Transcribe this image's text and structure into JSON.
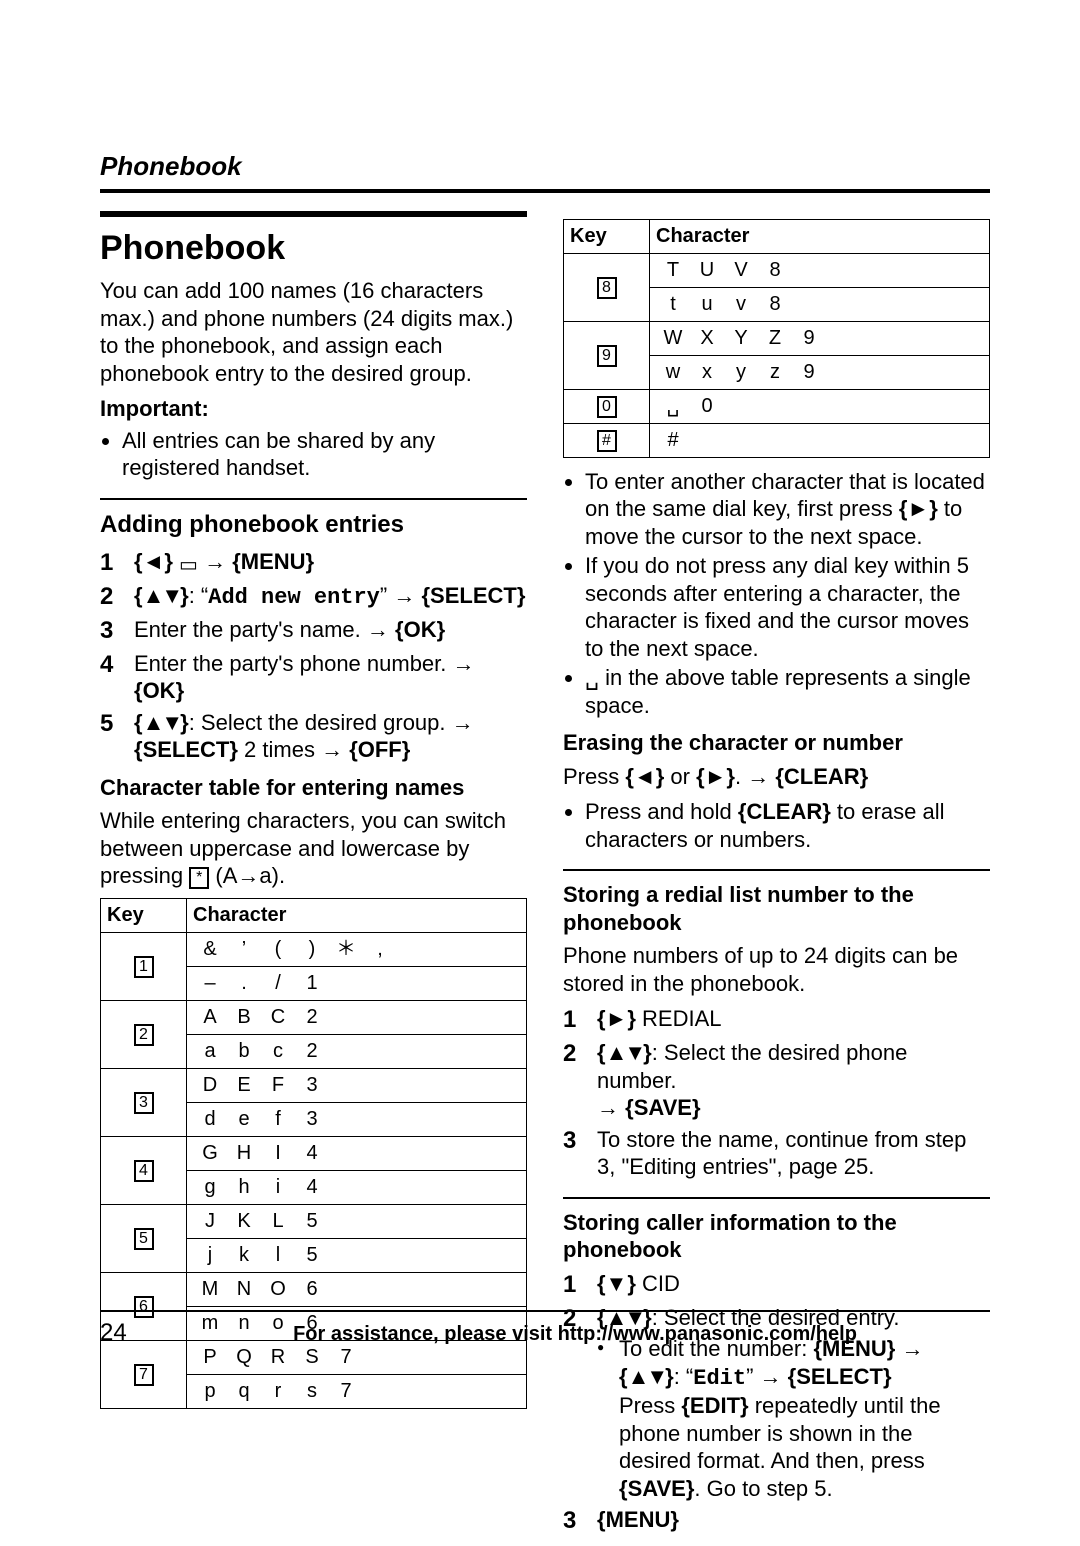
{
  "runningHead": "Phonebook",
  "pageNumber": "24",
  "footerAssist": "For assistance, please visit http://www.panasonic.com/help",
  "sectionTitle": "Phonebook",
  "intro": "You can add 100 names (16 characters max.) and phone numbers (24 digits max.) to the phonebook, and assign each phonebook entry to the desired group.",
  "importantLabel": "Important:",
  "importantBullet": "All entries can be shared by any registered handset.",
  "addingHead": "Adding phonebook entries",
  "steps_add": {
    "s1_menu": "MENU",
    "s2_label": "Add new entry",
    "s2_select": "SELECT",
    "s3_text": "Enter the party's name.",
    "s3_ok": "OK",
    "s4_text": "Enter the party's phone number.",
    "s4_ok": "OK",
    "s5_text": ": Select the desired group.",
    "s5_select": "SELECT",
    "s5_times": " 2 times ",
    "s5_off": "OFF"
  },
  "charTableHead": "Character table for entering names",
  "charTableIntro": "While entering characters, you can switch between uppercase and lowercase by pressing ",
  "charTableIntroTail": " (A→a).",
  "tableHeaders": {
    "key": "Key",
    "character": "Character"
  },
  "charRowsLeft": [
    {
      "key": "1",
      "rows": [
        [
          "&",
          "’",
          "(",
          ")",
          "＊",
          ","
        ],
        [
          "–",
          ".",
          "/",
          "1",
          "",
          ""
        ]
      ]
    },
    {
      "key": "2",
      "rows": [
        [
          "A",
          "B",
          "C",
          "2",
          "",
          ""
        ],
        [
          "a",
          "b",
          "c",
          "2",
          "",
          ""
        ]
      ]
    },
    {
      "key": "3",
      "rows": [
        [
          "D",
          "E",
          "F",
          "3",
          "",
          ""
        ],
        [
          "d",
          "e",
          "f",
          "3",
          "",
          ""
        ]
      ]
    },
    {
      "key": "4",
      "rows": [
        [
          "G",
          "H",
          "I",
          "4",
          "",
          ""
        ],
        [
          "g",
          "h",
          "i",
          "4",
          "",
          ""
        ]
      ]
    },
    {
      "key": "5",
      "rows": [
        [
          "J",
          "K",
          "L",
          "5",
          "",
          ""
        ],
        [
          "j",
          "k",
          "l",
          "5",
          "",
          ""
        ]
      ]
    },
    {
      "key": "6",
      "rows": [
        [
          "M",
          "N",
          "O",
          "6",
          "",
          ""
        ],
        [
          "m",
          "n",
          "o",
          "6",
          "",
          ""
        ]
      ]
    },
    {
      "key": "7",
      "rows": [
        [
          "P",
          "Q",
          "R",
          "S",
          "7",
          ""
        ],
        [
          "p",
          "q",
          "r",
          "s",
          "7",
          ""
        ]
      ]
    }
  ],
  "charRowsRight": [
    {
      "key": "8",
      "rows": [
        [
          "T",
          "U",
          "V",
          "8",
          "",
          ""
        ],
        [
          "t",
          "u",
          "v",
          "8",
          "",
          ""
        ]
      ]
    },
    {
      "key": "9",
      "rows": [
        [
          "W",
          "X",
          "Y",
          "Z",
          "9",
          ""
        ],
        [
          "w",
          "x",
          "y",
          "z",
          "9",
          ""
        ]
      ]
    },
    {
      "key": "0",
      "rows": [
        [
          "␣",
          "0",
          "",
          "",
          "",
          ""
        ]
      ]
    },
    {
      "key": "#",
      "rows": [
        [
          "#",
          "",
          "",
          "",
          "",
          ""
        ]
      ]
    }
  ],
  "notesRight": [
    "To enter another character that is located on the same dial key, first press {►} to move the cursor to the next space.",
    "If you do not press any dial key within 5 seconds after entering a character, the character is fixed and the cursor moves to the next space.",
    "␣ in the above table represents a single space."
  ],
  "note1_prefix": "To enter another character that is located on the same dial key, first press ",
  "note1_key": "►",
  "note1_suffix": " to move the cursor to the next space.",
  "eraseHead": "Erasing the character or number",
  "erase_press": "Press ",
  "erase_or": " or ",
  "erase_dot": ". ",
  "erase_clear": "CLEAR",
  "erase_bullet_a": "Press and hold ",
  "erase_bullet_b": " to erase all characters or numbers.",
  "redialHead": "Storing a redial list number to the phonebook",
  "redialIntro": "Phone numbers of up to 24 digits can be stored in the phonebook.",
  "redial_s1": " REDIAL",
  "redial_s2": ": Select the desired phone number. ",
  "redial_save": "SAVE",
  "redial_s3": "To store the name, continue from step 3, \"Editing entries\", page 25.",
  "callerHead": "Storing caller information to the phonebook",
  "caller_s1": " CID",
  "caller_s2_a": ": Select the desired entry.",
  "caller_s2_b1": "To edit the number: ",
  "caller_menu": "MENU",
  "caller_edit": "Edit",
  "caller_select": "SELECT",
  "caller_s2_c": "Press ",
  "caller_editkey": "EDIT",
  "caller_s2_d": " repeatedly until the phone number is shown in the desired format. And then, press ",
  "caller_save": "SAVE",
  "caller_s2_e": ". Go to step 5.",
  "caller_s3": "MENU"
}
